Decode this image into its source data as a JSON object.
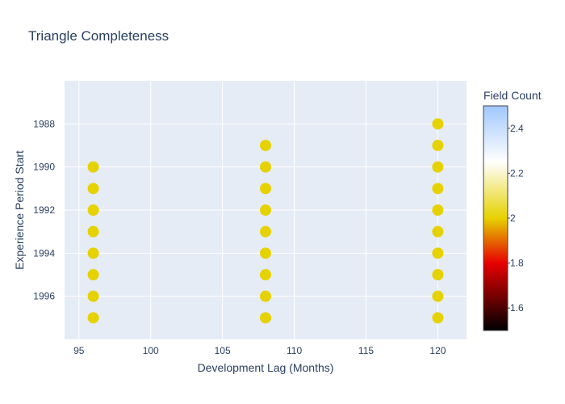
{
  "chart_data": {
    "type": "scatter",
    "title": "Triangle Completeness",
    "xlabel": "Development Lag (Months)",
    "ylabel": "Experience Period Start",
    "xlim": [
      94,
      122
    ],
    "ylim": [
      1998,
      1986
    ],
    "x_ticks": [
      95,
      100,
      105,
      110,
      115,
      120
    ],
    "y_ticks": [
      1988,
      1990,
      1992,
      1994,
      1996
    ],
    "grid": true,
    "series": [
      {
        "marker_color": "#e6d200",
        "points": [
          {
            "x": 96,
            "y": 1990,
            "field_count": 2
          },
          {
            "x": 96,
            "y": 1991,
            "field_count": 2
          },
          {
            "x": 96,
            "y": 1992,
            "field_count": 2
          },
          {
            "x": 96,
            "y": 1993,
            "field_count": 2
          },
          {
            "x": 96,
            "y": 1994,
            "field_count": 2
          },
          {
            "x": 96,
            "y": 1995,
            "field_count": 2
          },
          {
            "x": 96,
            "y": 1996,
            "field_count": 2
          },
          {
            "x": 96,
            "y": 1997,
            "field_count": 2
          },
          {
            "x": 108,
            "y": 1989,
            "field_count": 2
          },
          {
            "x": 108,
            "y": 1990,
            "field_count": 2
          },
          {
            "x": 108,
            "y": 1991,
            "field_count": 2
          },
          {
            "x": 108,
            "y": 1992,
            "field_count": 2
          },
          {
            "x": 108,
            "y": 1993,
            "field_count": 2
          },
          {
            "x": 108,
            "y": 1994,
            "field_count": 2
          },
          {
            "x": 108,
            "y": 1995,
            "field_count": 2
          },
          {
            "x": 108,
            "y": 1996,
            "field_count": 2
          },
          {
            "x": 108,
            "y": 1997,
            "field_count": 2
          },
          {
            "x": 120,
            "y": 1988,
            "field_count": 2
          },
          {
            "x": 120,
            "y": 1989,
            "field_count": 2
          },
          {
            "x": 120,
            "y": 1990,
            "field_count": 2
          },
          {
            "x": 120,
            "y": 1991,
            "field_count": 2
          },
          {
            "x": 120,
            "y": 1992,
            "field_count": 2
          },
          {
            "x": 120,
            "y": 1993,
            "field_count": 2
          },
          {
            "x": 120,
            "y": 1994,
            "field_count": 2
          },
          {
            "x": 120,
            "y": 1995,
            "field_count": 2
          },
          {
            "x": 120,
            "y": 1996,
            "field_count": 2
          },
          {
            "x": 120,
            "y": 1997,
            "field_count": 2
          }
        ]
      }
    ],
    "colorbar": {
      "title": "Field Count",
      "range": [
        1.5,
        2.5
      ],
      "ticks": [
        "1.6",
        "1.8",
        "2",
        "2.2",
        "2.4"
      ],
      "colorscale": [
        "#000000",
        "#e60000",
        "#e6d200",
        "#ffffff",
        "#a0c8ff"
      ]
    },
    "colors": {
      "plot_bg": "#e5ecf6",
      "grid": "#ffffff",
      "text": "#2a3f5f"
    }
  }
}
